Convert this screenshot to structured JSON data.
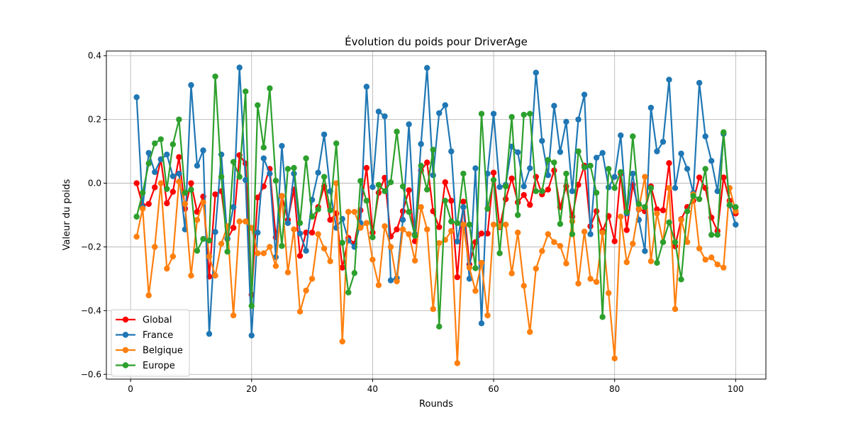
{
  "chart_data": {
    "type": "line",
    "title": "Évolution du poids pour DriverAge",
    "xlabel": "Rounds",
    "ylabel": "Valeur du poids",
    "xlim": [
      -4,
      105
    ],
    "ylim": [
      -0.615,
      0.415
    ],
    "x_ticks": [
      0,
      20,
      40,
      60,
      80,
      100
    ],
    "x_tick_labels": [
      "0",
      "20",
      "40",
      "60",
      "80",
      "100"
    ],
    "y_ticks": [
      -0.6,
      -0.4,
      -0.2,
      0.0,
      0.2,
      0.4
    ],
    "y_tick_labels": [
      "−0.6",
      "−0.4",
      "−0.2",
      "0.0",
      "0.2",
      "0.4"
    ],
    "grid": true,
    "legend_position": "bottom-left",
    "x": [
      1,
      2,
      3,
      4,
      5,
      6,
      7,
      8,
      9,
      10,
      11,
      12,
      13,
      14,
      15,
      16,
      17,
      18,
      19,
      20,
      21,
      22,
      23,
      24,
      25,
      26,
      27,
      28,
      29,
      30,
      31,
      32,
      33,
      34,
      35,
      36,
      37,
      38,
      39,
      40,
      41,
      42,
      43,
      44,
      45,
      46,
      47,
      48,
      49,
      50,
      51,
      52,
      53,
      54,
      55,
      56,
      57,
      58,
      59,
      60,
      61,
      62,
      63,
      64,
      65,
      66,
      67,
      68,
      69,
      70,
      71,
      72,
      73,
      74,
      75,
      76,
      77,
      78,
      79,
      80,
      81,
      82,
      83,
      84,
      85,
      86,
      87,
      88,
      89,
      90,
      91,
      92,
      93,
      94,
      95,
      96,
      97,
      98,
      99,
      100
    ],
    "series": [
      {
        "name": "Global",
        "color": "#ff0000",
        "values": [
          0.0,
          -0.07,
          -0.065,
          -0.013,
          0.075,
          -0.063,
          -0.027,
          0.082,
          -0.08,
          0.0,
          -0.09,
          -0.042,
          -0.293,
          -0.035,
          -0.025,
          -0.175,
          -0.14,
          0.088,
          0.062,
          -0.35,
          -0.045,
          -0.01,
          0.045,
          -0.17,
          -0.04,
          -0.115,
          -0.02,
          -0.228,
          -0.155,
          -0.155,
          -0.075,
          -0.01,
          -0.115,
          -0.095,
          -0.265,
          -0.172,
          -0.19,
          -0.085,
          0.048,
          -0.155,
          -0.03,
          0.017,
          -0.167,
          -0.145,
          -0.088,
          -0.022,
          -0.182,
          0.04,
          0.065,
          -0.088,
          -0.138,
          0.003,
          -0.055,
          -0.295,
          -0.058,
          -0.255,
          -0.185,
          -0.158,
          -0.158,
          0.033,
          -0.138,
          -0.05,
          0.015,
          -0.06,
          -0.037,
          -0.068,
          0.02,
          -0.035,
          -0.02,
          0.04,
          -0.075,
          -0.01,
          -0.105,
          -0.005,
          0.055,
          -0.135,
          -0.088,
          -0.15,
          -0.103,
          -0.182,
          0.03,
          -0.147,
          -0.005,
          -0.082,
          -0.088,
          -0.01,
          -0.082,
          -0.085,
          0.063,
          -0.198,
          -0.113,
          -0.075,
          -0.055,
          0.018,
          -0.015,
          -0.108,
          -0.15,
          0.018,
          -0.055,
          -0.095
        ]
      },
      {
        "name": "France",
        "color": "#1f77b4",
        "values": [
          0.27,
          -0.075,
          0.095,
          0.035,
          0.075,
          0.09,
          0.022,
          0.03,
          -0.145,
          0.308,
          0.055,
          0.103,
          -0.473,
          -0.153,
          0.09,
          -0.173,
          -0.075,
          0.363,
          0.01,
          -0.478,
          -0.155,
          0.078,
          0.03,
          -0.232,
          0.117,
          -0.125,
          0.03,
          -0.158,
          -0.212,
          -0.052,
          0.033,
          0.153,
          -0.025,
          -0.14,
          -0.112,
          -0.18,
          -0.2,
          -0.125,
          0.303,
          -0.012,
          0.225,
          0.21,
          -0.305,
          -0.298,
          -0.115,
          0.185,
          -0.16,
          0.123,
          0.362,
          0.025,
          0.22,
          0.245,
          0.1,
          -0.183,
          -0.075,
          -0.3,
          0.047,
          -0.44,
          0.03,
          0.218,
          -0.012,
          -0.005,
          0.115,
          0.097,
          -0.01,
          0.047,
          0.347,
          0.133,
          0.025,
          0.243,
          0.098,
          0.193,
          -0.025,
          0.2,
          0.278,
          -0.16,
          0.08,
          0.095,
          -0.013,
          0.02,
          0.15,
          -0.095,
          0.03,
          -0.115,
          -0.213,
          0.237,
          0.1,
          0.13,
          0.325,
          -0.015,
          0.093,
          0.045,
          -0.03,
          0.315,
          0.147,
          0.07,
          -0.025,
          0.155,
          -0.07,
          -0.13
        ]
      },
      {
        "name": "Belgique",
        "color": "#ff7f0e",
        "values": [
          -0.168,
          -0.08,
          -0.352,
          -0.2,
          0.0,
          -0.268,
          -0.23,
          0.005,
          -0.065,
          -0.29,
          -0.115,
          -0.06,
          -0.23,
          -0.29,
          -0.19,
          -0.135,
          -0.415,
          -0.12,
          -0.12,
          -0.14,
          -0.22,
          -0.22,
          -0.2,
          -0.26,
          -0.04,
          -0.28,
          -0.145,
          -0.403,
          -0.337,
          -0.3,
          -0.16,
          -0.205,
          -0.245,
          0.0,
          -0.497,
          -0.09,
          -0.09,
          -0.14,
          -0.125,
          -0.24,
          -0.32,
          -0.135,
          -0.2,
          -0.308,
          -0.145,
          -0.16,
          -0.243,
          -0.075,
          -0.145,
          -0.395,
          -0.188,
          -0.178,
          -0.15,
          -0.565,
          -0.13,
          -0.265,
          -0.338,
          -0.25,
          -0.415,
          -0.13,
          -0.135,
          -0.13,
          -0.283,
          -0.155,
          -0.322,
          -0.467,
          -0.268,
          -0.213,
          -0.16,
          -0.185,
          -0.197,
          -0.252,
          -0.12,
          -0.315,
          -0.152,
          -0.3,
          -0.31,
          -0.155,
          -0.345,
          -0.55,
          -0.105,
          -0.248,
          -0.19,
          -0.08,
          0.02,
          -0.245,
          -0.095,
          -0.185,
          -0.015,
          -0.395,
          -0.115,
          -0.185,
          -0.035,
          -0.205,
          -0.24,
          -0.233,
          -0.255,
          -0.265,
          -0.015,
          -0.088
        ]
      },
      {
        "name": "Europe",
        "color": "#2ca02c",
        "values": [
          -0.105,
          -0.03,
          0.062,
          0.125,
          0.138,
          -0.018,
          0.122,
          0.2,
          -0.03,
          -0.02,
          -0.212,
          -0.175,
          -0.18,
          0.335,
          0.02,
          -0.215,
          0.067,
          0.02,
          0.288,
          -0.385,
          0.245,
          0.112,
          0.298,
          0.008,
          -0.197,
          0.045,
          0.048,
          -0.125,
          0.078,
          -0.105,
          -0.082,
          0.02,
          -0.085,
          0.125,
          -0.187,
          -0.343,
          -0.282,
          0.007,
          -0.055,
          -0.17,
          -0.005,
          -0.025,
          0.003,
          0.162,
          -0.01,
          -0.09,
          -0.165,
          0.055,
          -0.02,
          0.105,
          -0.45,
          -0.055,
          -0.12,
          -0.125,
          0.03,
          -0.13,
          -0.267,
          0.218,
          -0.08,
          0.01,
          -0.22,
          -0.01,
          0.208,
          -0.1,
          0.215,
          0.218,
          -0.025,
          -0.025,
          0.073,
          0.065,
          -0.128,
          0.03,
          -0.16,
          0.1,
          0.05,
          0.055,
          -0.03,
          -0.42,
          0.045,
          -0.015,
          0.035,
          -0.09,
          0.147,
          -0.065,
          -0.075,
          -0.015,
          -0.25,
          -0.185,
          -0.123,
          -0.185,
          -0.302,
          -0.088,
          -0.04,
          -0.05,
          0.045,
          -0.162,
          -0.162,
          0.16,
          -0.068,
          -0.075
        ]
      }
    ]
  }
}
